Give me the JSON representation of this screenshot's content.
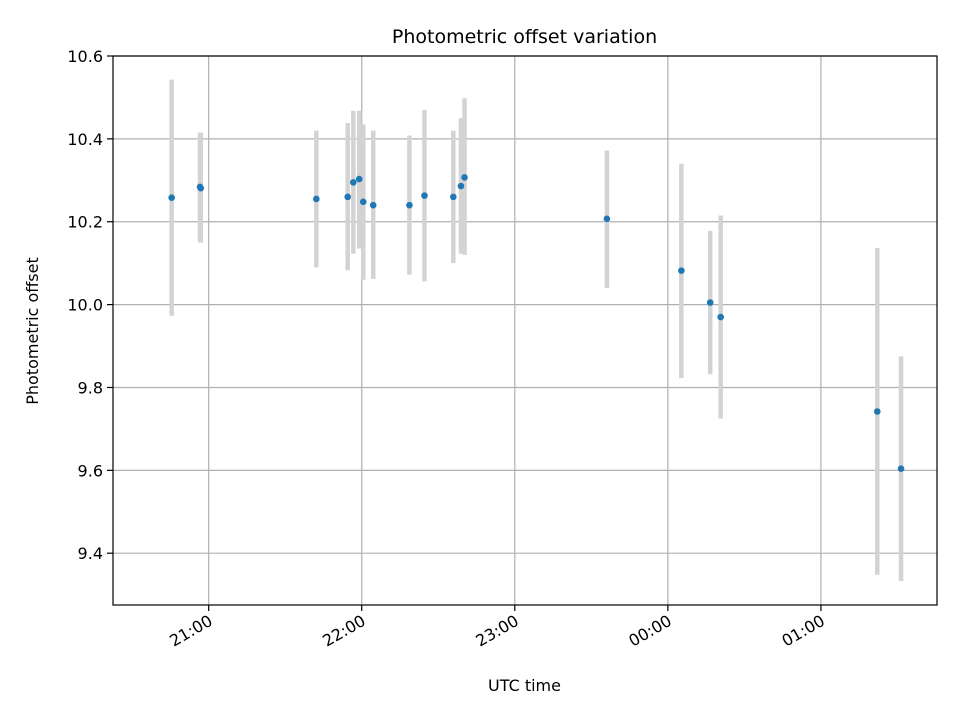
{
  "chart_data": {
    "type": "scatter",
    "title": "Photometric offset variation",
    "xlabel": "UTC time",
    "ylabel": "Photometric offset",
    "x_tick_labels": [
      "21:00",
      "22:00",
      "23:00",
      "00:00",
      "01:00"
    ],
    "x_ticks_minutes": [
      60,
      120,
      180,
      240,
      300
    ],
    "y_ticks": [
      9.4,
      9.6,
      9.8,
      10.0,
      10.2,
      10.4,
      10.6
    ],
    "xlim_minutes": [
      22.5,
      345.5
    ],
    "ylim": [
      9.275,
      10.6
    ],
    "grid": true,
    "colors": {
      "points": "#1f77b4",
      "errorbars": "#d3d3d3",
      "grid": "#b0b0b0"
    },
    "points": [
      {
        "t": 45.5,
        "y": 10.258,
        "lo": 9.973,
        "hi": 10.543
      },
      {
        "t": 56.6,
        "y": 10.284,
        "lo": 10.15,
        "hi": 10.415
      },
      {
        "t": 56.9,
        "y": 10.281,
        "lo": 10.15,
        "hi": 10.415
      },
      {
        "t": 102.2,
        "y": 10.255,
        "lo": 10.09,
        "hi": 10.42
      },
      {
        "t": 114.5,
        "y": 10.26,
        "lo": 10.083,
        "hi": 10.438
      },
      {
        "t": 116.7,
        "y": 10.295,
        "lo": 10.123,
        "hi": 10.468
      },
      {
        "t": 119.0,
        "y": 10.303,
        "lo": 10.135,
        "hi": 10.468
      },
      {
        "t": 120.6,
        "y": 10.248,
        "lo": 10.06,
        "hi": 10.435
      },
      {
        "t": 124.5,
        "y": 10.24,
        "lo": 10.062,
        "hi": 10.42
      },
      {
        "t": 138.7,
        "y": 10.24,
        "lo": 10.072,
        "hi": 10.408
      },
      {
        "t": 144.6,
        "y": 10.263,
        "lo": 10.056,
        "hi": 10.47
      },
      {
        "t": 155.9,
        "y": 10.26,
        "lo": 10.1,
        "hi": 10.42
      },
      {
        "t": 158.9,
        "y": 10.286,
        "lo": 10.123,
        "hi": 10.45
      },
      {
        "t": 160.3,
        "y": 10.307,
        "lo": 10.12,
        "hi": 10.498
      },
      {
        "t": 216.1,
        "y": 10.207,
        "lo": 10.04,
        "hi": 10.372
      },
      {
        "t": 245.3,
        "y": 10.082,
        "lo": 9.823,
        "hi": 10.34
      },
      {
        "t": 256.6,
        "y": 10.005,
        "lo": 9.832,
        "hi": 10.178
      },
      {
        "t": 260.7,
        "y": 9.97,
        "lo": 9.725,
        "hi": 10.215
      },
      {
        "t": 322.1,
        "y": 9.742,
        "lo": 9.348,
        "hi": 10.137
      },
      {
        "t": 331.4,
        "y": 9.604,
        "lo": 9.333,
        "hi": 9.875
      }
    ]
  }
}
